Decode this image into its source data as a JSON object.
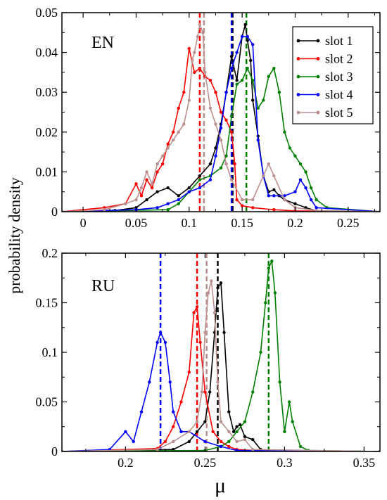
{
  "figure": {
    "ylabel": "probability density",
    "xlabel": "μ"
  },
  "colors": {
    "slot 1": "#000000",
    "slot 2": "#ff0000",
    "slot 3": "#008000",
    "slot 4": "#0000ff",
    "slot 5": "#bc8f8f"
  },
  "chart_data": [
    {
      "type": "line",
      "title": "",
      "panel_label": "EN",
      "xlabel": "",
      "ylabel": "probability density",
      "xlim": [
        -0.02,
        0.28
      ],
      "ylim": [
        0,
        0.05
      ],
      "xticks": [
        0,
        0.05,
        0.1,
        0.15,
        0.2,
        0.25
      ],
      "xtick_labels": [
        "0",
        "0.05",
        "0.1",
        "0.15",
        "0.2",
        "0.25"
      ],
      "yticks": [
        0,
        0.01,
        0.02,
        0.03,
        0.04,
        0.05
      ],
      "ytick_labels": [
        "0",
        "0.01",
        "0.02",
        "0.03",
        "0.04",
        "0.05"
      ],
      "grid": false,
      "legend": {
        "position": "top-right",
        "entries": [
          "slot 1",
          "slot 2",
          "slot 3",
          "slot 4",
          "slot 5"
        ]
      },
      "vlines": [
        {
          "series": "slot 1",
          "x": 0.141,
          "dashed": true
        },
        {
          "series": "slot 2",
          "x": 0.11,
          "dashed": true
        },
        {
          "series": "slot 3",
          "x": 0.154,
          "dashed": true
        },
        {
          "series": "slot 4",
          "x": 0.14,
          "dashed": true
        },
        {
          "series": "slot 5",
          "x": 0.114,
          "dashed": true
        }
      ],
      "series": [
        {
          "name": "slot 1",
          "x": [
            -0.02,
            0.03,
            0.05,
            0.06,
            0.07,
            0.08,
            0.09,
            0.1,
            0.11,
            0.12,
            0.125,
            0.13,
            0.135,
            0.14,
            0.145,
            0.15,
            0.153,
            0.155,
            0.158,
            0.16,
            0.165,
            0.17,
            0.175,
            0.18,
            0.185,
            0.19,
            0.2,
            0.21,
            0.22,
            0.28
          ],
          "y": [
            0,
            0.0003,
            0.001,
            0.003,
            0.005,
            0.006,
            0.004,
            0.006,
            0.009,
            0.012,
            0.016,
            0.022,
            0.03,
            0.039,
            0.033,
            0.044,
            0.047,
            0.043,
            0.038,
            0.028,
            0.019,
            0.009,
            0.005,
            0.0055,
            0.004,
            0.003,
            0.002,
            0.001,
            0.0002,
            0
          ]
        },
        {
          "name": "slot 2",
          "x": [
            -0.02,
            0.02,
            0.04,
            0.05,
            0.055,
            0.06,
            0.065,
            0.07,
            0.075,
            0.08,
            0.085,
            0.09,
            0.095,
            0.1,
            0.105,
            0.11,
            0.115,
            0.12,
            0.125,
            0.13,
            0.135,
            0.14,
            0.143,
            0.145,
            0.15,
            0.16,
            0.18,
            0.2,
            0.28
          ],
          "y": [
            0,
            0.001,
            0.002,
            0.007,
            0.004,
            0.008,
            0.006,
            0.01,
            0.012,
            0.017,
            0.02,
            0.026,
            0.03,
            0.041,
            0.035,
            0.036,
            0.034,
            0.033,
            0.03,
            0.025,
            0.023,
            0.02,
            0.012,
            0.003,
            0.0015,
            0.001,
            0.0005,
            0.0002,
            0
          ]
        },
        {
          "name": "slot 3",
          "x": [
            -0.02,
            0.08,
            0.09,
            0.1,
            0.11,
            0.12,
            0.13,
            0.135,
            0.14,
            0.145,
            0.15,
            0.155,
            0.16,
            0.165,
            0.17,
            0.175,
            0.18,
            0.185,
            0.19,
            0.195,
            0.2,
            0.205,
            0.21,
            0.215,
            0.22,
            0.23,
            0.28
          ],
          "y": [
            0,
            0.0005,
            0.002,
            0.005,
            0.008,
            0.009,
            0.011,
            0.014,
            0.024,
            0.032,
            0.033,
            0.036,
            0.033,
            0.026,
            0.028,
            0.034,
            0.036,
            0.03,
            0.02,
            0.016,
            0.014,
            0.012,
            0.01,
            0.006,
            0.003,
            0.001,
            0
          ]
        },
        {
          "name": "slot 4",
          "x": [
            -0.02,
            0.05,
            0.07,
            0.08,
            0.09,
            0.1,
            0.11,
            0.12,
            0.125,
            0.13,
            0.135,
            0.14,
            0.145,
            0.15,
            0.155,
            0.16,
            0.165,
            0.17,
            0.175,
            0.18,
            0.19,
            0.2,
            0.205,
            0.21,
            0.215,
            0.22,
            0.28
          ],
          "y": [
            0,
            0.0005,
            0.001,
            0.002,
            0.003,
            0.005,
            0.006,
            0.008,
            0.014,
            0.021,
            0.03,
            0.036,
            0.04,
            0.044,
            0.044,
            0.042,
            0.018,
            0.009,
            0.004,
            0.004,
            0.004,
            0.005,
            0.008,
            0.006,
            0.003,
            0.001,
            0
          ]
        },
        {
          "name": "slot 5",
          "x": [
            -0.02,
            0.02,
            0.04,
            0.05,
            0.055,
            0.06,
            0.065,
            0.07,
            0.075,
            0.08,
            0.085,
            0.09,
            0.095,
            0.1,
            0.103,
            0.105,
            0.108,
            0.11,
            0.113,
            0.115,
            0.12,
            0.125,
            0.13,
            0.135,
            0.14,
            0.15,
            0.16,
            0.17,
            0.175,
            0.18,
            0.19,
            0.2,
            0.22,
            0.28
          ],
          "y": [
            0,
            0.0005,
            0.002,
            0.003,
            0.006,
            0.01,
            0.007,
            0.012,
            0.014,
            0.016,
            0.018,
            0.02,
            0.022,
            0.028,
            0.038,
            0.04,
            0.044,
            0.047,
            0.045,
            0.035,
            0.026,
            0.022,
            0.018,
            0.012,
            0.008,
            0.003,
            0.003,
            0.009,
            0.012,
            0.009,
            0.003,
            0.001,
            0.0003,
            0
          ]
        }
      ]
    },
    {
      "type": "line",
      "title": "",
      "panel_label": "RU",
      "xlabel": "μ",
      "ylabel": "probability density",
      "xlim": [
        0.16,
        0.36
      ],
      "ylim": [
        0,
        0.2
      ],
      "xticks": [
        0.2,
        0.25,
        0.3,
        0.35
      ],
      "xtick_labels": [
        "0.2",
        "0.25",
        "0.3",
        "0.35"
      ],
      "yticks": [
        0,
        0.05,
        0.1,
        0.15,
        0.2
      ],
      "ytick_labels": [
        "0",
        "0.05",
        "0.1",
        "0.15",
        "0.2"
      ],
      "grid": false,
      "legend": null,
      "vlines": [
        {
          "series": "slot 1",
          "x": 0.258,
          "dashed": true
        },
        {
          "series": "slot 2",
          "x": 0.245,
          "dashed": true
        },
        {
          "series": "slot 3",
          "x": 0.29,
          "dashed": true
        },
        {
          "series": "slot 4",
          "x": 0.222,
          "dashed": true
        },
        {
          "series": "slot 5",
          "x": 0.251,
          "dashed": true
        }
      ],
      "series": [
        {
          "name": "slot 1",
          "x": [
            0.16,
            0.23,
            0.24,
            0.245,
            0.25,
            0.253,
            0.256,
            0.258,
            0.26,
            0.262,
            0.265,
            0.268,
            0.27,
            0.272,
            0.275,
            0.28,
            0.285,
            0.29,
            0.36
          ],
          "y": [
            0,
            0.002,
            0.01,
            0.02,
            0.03,
            0.06,
            0.12,
            0.165,
            0.17,
            0.12,
            0.04,
            0.02,
            0.025,
            0.027,
            0.015,
            0.012,
            0.002,
            0.001,
            0
          ]
        },
        {
          "name": "slot 2",
          "x": [
            0.16,
            0.22,
            0.225,
            0.23,
            0.235,
            0.24,
            0.243,
            0.245,
            0.247,
            0.25,
            0.255,
            0.26,
            0.265,
            0.27,
            0.28,
            0.36
          ],
          "y": [
            0,
            0.003,
            0.01,
            0.025,
            0.05,
            0.08,
            0.14,
            0.146,
            0.11,
            0.06,
            0.02,
            0.01,
            0.005,
            0.002,
            0.001,
            0
          ]
        },
        {
          "name": "slot 3",
          "x": [
            0.16,
            0.25,
            0.26,
            0.265,
            0.27,
            0.275,
            0.28,
            0.285,
            0.288,
            0.29,
            0.292,
            0.294,
            0.297,
            0.3,
            0.303,
            0.305,
            0.31,
            0.315,
            0.36
          ],
          "y": [
            0,
            0.001,
            0.005,
            0.01,
            0.02,
            0.03,
            0.06,
            0.1,
            0.15,
            0.185,
            0.192,
            0.16,
            0.07,
            0.02,
            0.05,
            0.03,
            0.005,
            0.001,
            0
          ]
        },
        {
          "name": "slot 4",
          "x": [
            0.16,
            0.19,
            0.2,
            0.205,
            0.21,
            0.215,
            0.22,
            0.222,
            0.225,
            0.228,
            0.23,
            0.235,
            0.24,
            0.25,
            0.26,
            0.27,
            0.36
          ],
          "y": [
            0,
            0.002,
            0.02,
            0.01,
            0.04,
            0.07,
            0.11,
            0.12,
            0.11,
            0.07,
            0.04,
            0.02,
            0.02,
            0.01,
            0.005,
            0.001,
            0
          ]
        },
        {
          "name": "slot 5",
          "x": [
            0.16,
            0.22,
            0.23,
            0.24,
            0.245,
            0.248,
            0.25,
            0.252,
            0.254,
            0.256,
            0.258,
            0.26,
            0.265,
            0.27,
            0.275,
            0.28,
            0.36
          ],
          "y": [
            0,
            0.002,
            0.01,
            0.02,
            0.03,
            0.06,
            0.12,
            0.16,
            0.172,
            0.14,
            0.07,
            0.03,
            0.02,
            0.01,
            0.012,
            0.002,
            0
          ]
        }
      ]
    }
  ]
}
